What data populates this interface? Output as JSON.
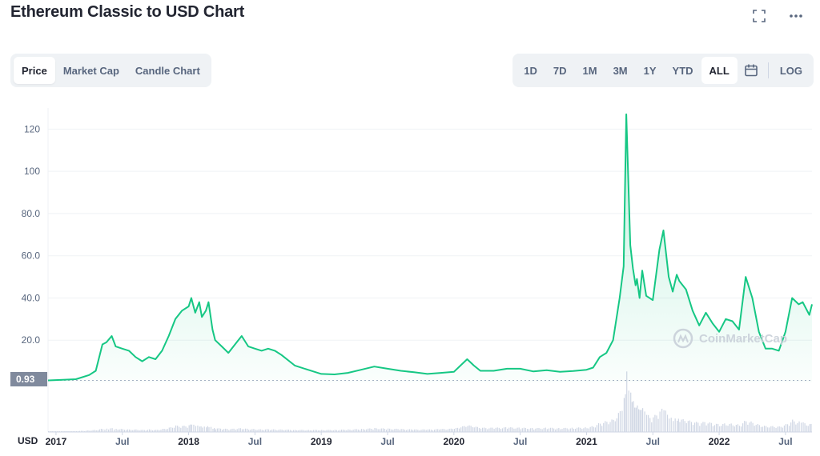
{
  "header": {
    "title": "Ethereum Classic to USD Chart"
  },
  "tabs": [
    {
      "label": "Price",
      "active": true
    },
    {
      "label": "Market Cap",
      "active": false
    },
    {
      "label": "Candle Chart",
      "active": false
    }
  ],
  "ranges": [
    {
      "label": "1D",
      "active": false
    },
    {
      "label": "7D",
      "active": false
    },
    {
      "label": "1M",
      "active": false
    },
    {
      "label": "3M",
      "active": false
    },
    {
      "label": "1Y",
      "active": false
    },
    {
      "label": "YTD",
      "active": false
    },
    {
      "label": "ALL",
      "active": true
    }
  ],
  "log_label": "LOG",
  "watermark": "CoinMarketCap",
  "colors": {
    "line": "#16c784",
    "fill_top": "#16c784",
    "volume": "#cfd6e4",
    "grid": "#eff2f5",
    "price_tag_bg": "#808a9d"
  },
  "chart_data": {
    "type": "area",
    "currency_label": "USD",
    "start_price_label": "0.93",
    "y_ticks": [
      "120",
      "100",
      "80.0",
      "60.0",
      "40.0",
      "20.0"
    ],
    "y_tick_values": [
      120,
      100,
      80,
      60,
      40,
      20
    ],
    "ylim": [
      0,
      130
    ],
    "x_ticks": [
      {
        "label": "2017",
        "t": 2017.0,
        "year": true
      },
      {
        "label": "Jul",
        "t": 2017.5,
        "year": false
      },
      {
        "label": "2018",
        "t": 2018.0,
        "year": true
      },
      {
        "label": "Jul",
        "t": 2018.5,
        "year": false
      },
      {
        "label": "2019",
        "t": 2019.0,
        "year": true
      },
      {
        "label": "Jul",
        "t": 2019.5,
        "year": false
      },
      {
        "label": "2020",
        "t": 2020.0,
        "year": true
      },
      {
        "label": "Jul",
        "t": 2020.5,
        "year": false
      },
      {
        "label": "2021",
        "t": 2021.0,
        "year": true
      },
      {
        "label": "Jul",
        "t": 2021.5,
        "year": false
      },
      {
        "label": "2022",
        "t": 2022.0,
        "year": true
      },
      {
        "label": "Jul",
        "t": 2022.5,
        "year": false
      }
    ],
    "series": [
      {
        "x": [
          2016.94,
          2017.05,
          2017.15,
          2017.25,
          2017.3,
          2017.35,
          2017.38,
          2017.42,
          2017.45,
          2017.5,
          2017.55,
          2017.6,
          2017.65,
          2017.7,
          2017.75,
          2017.8,
          2017.85,
          2017.9,
          2017.95,
          2018.0,
          2018.02,
          2018.05,
          2018.08,
          2018.1,
          2018.13,
          2018.15,
          2018.18,
          2018.2,
          2018.25,
          2018.3,
          2018.35,
          2018.4,
          2018.45,
          2018.5,
          2018.55,
          2018.6,
          2018.65,
          2018.7,
          2018.8,
          2018.9,
          2019.0,
          2019.1,
          2019.2,
          2019.3,
          2019.4,
          2019.5,
          2019.6,
          2019.7,
          2019.8,
          2019.9,
          2020.0,
          2020.05,
          2020.1,
          2020.15,
          2020.2,
          2020.3,
          2020.4,
          2020.5,
          2020.6,
          2020.7,
          2020.8,
          2020.9,
          2021.0,
          2021.05,
          2021.1,
          2021.15,
          2021.2,
          2021.25,
          2021.28,
          2021.3,
          2021.33,
          2021.35,
          2021.37,
          2021.38,
          2021.4,
          2021.42,
          2021.45,
          2021.5,
          2021.55,
          2021.58,
          2021.62,
          2021.65,
          2021.68,
          2021.7,
          2021.75,
          2021.8,
          2021.85,
          2021.9,
          2021.95,
          2022.0,
          2022.05,
          2022.1,
          2022.15,
          2022.2,
          2022.25,
          2022.3,
          2022.35,
          2022.4,
          2022.45,
          2022.5,
          2022.55,
          2022.6,
          2022.63,
          2022.68,
          2022.7
        ],
        "y": [
          0.93,
          1.2,
          1.5,
          3.5,
          5.5,
          18,
          19,
          22,
          17,
          16,
          15,
          12,
          10,
          12,
          11,
          15,
          22,
          30,
          34,
          36,
          40,
          33,
          38,
          31,
          34,
          38,
          25,
          20,
          17,
          14,
          18,
          22,
          17,
          16,
          15,
          16,
          15,
          13,
          8,
          6,
          4,
          3.8,
          4.5,
          6,
          7.5,
          6.5,
          5.5,
          4.8,
          4,
          4.5,
          5,
          8,
          11,
          8,
          5.5,
          5.5,
          6.5,
          6.5,
          5.2,
          5.8,
          5,
          5.4,
          6,
          7,
          12,
          14,
          20,
          40,
          55,
          127,
          65,
          54,
          46,
          49,
          40,
          53,
          41,
          39,
          63,
          72,
          50,
          43,
          51,
          48,
          44,
          34,
          27,
          33,
          28,
          24,
          30,
          29,
          25,
          50,
          40,
          24,
          16,
          16,
          15,
          24,
          40,
          37,
          38,
          32,
          37
        ],
        "volume": [
          0.2,
          0.2,
          0.2,
          0.4,
          0.5,
          0.8,
          0.9,
          1.0,
          0.8,
          0.7,
          0.6,
          0.6,
          0.5,
          0.6,
          0.5,
          0.7,
          1.0,
          1.5,
          1.4,
          1.6,
          1.8,
          1.5,
          1.4,
          1.2,
          1.3,
          1.4,
          1.0,
          0.9,
          0.8,
          0.7,
          0.8,
          0.9,
          0.7,
          0.7,
          0.6,
          0.7,
          0.6,
          0.6,
          0.5,
          0.5,
          0.5,
          0.5,
          0.6,
          0.7,
          0.9,
          0.8,
          0.7,
          0.6,
          0.6,
          0.7,
          0.8,
          1.2,
          1.6,
          1.3,
          1.0,
          1.0,
          1.1,
          1.0,
          0.9,
          1.0,
          0.9,
          1.0,
          1.1,
          1.4,
          2.2,
          2.6,
          3.0,
          5.0,
          8.0,
          14.0,
          9.0,
          7.0,
          5.5,
          6.0,
          5.0,
          5.5,
          4.0,
          3.5,
          5.0,
          5.5,
          3.5,
          3.0,
          3.2,
          3.0,
          2.8,
          2.4,
          2.2,
          2.4,
          2.0,
          1.8,
          2.0,
          1.9,
          1.7,
          2.8,
          2.3,
          1.7,
          1.4,
          1.4,
          1.3,
          1.8,
          2.8,
          2.4,
          2.2,
          1.8,
          2.0
        ]
      }
    ]
  }
}
